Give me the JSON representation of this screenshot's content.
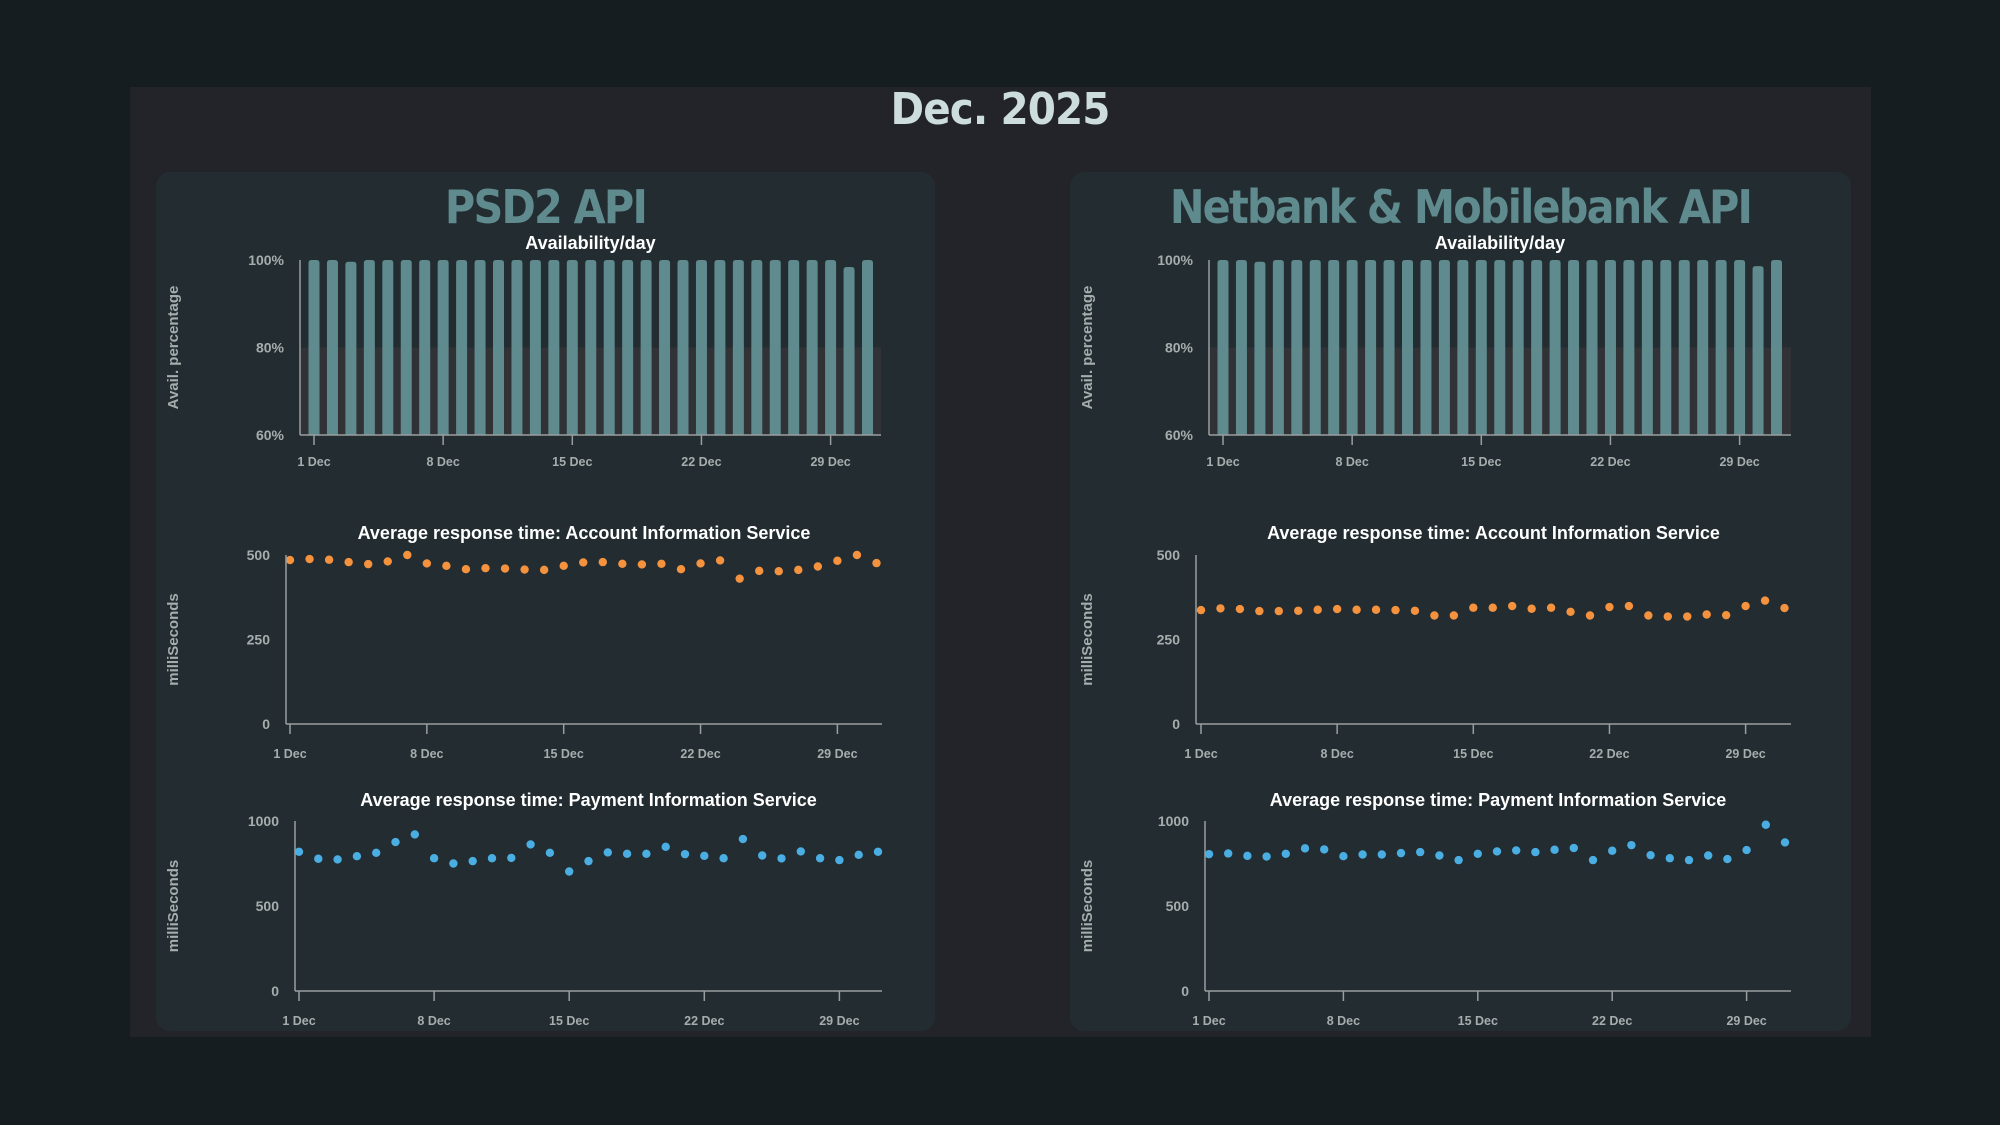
{
  "page": {
    "title": "Dec. 2025"
  },
  "colors": {
    "availability_bar": "#5f8b8e",
    "ais_dot": "#f5923e",
    "pis_dot": "#4aaee3",
    "threshold_band": "#303236"
  },
  "panels": [
    {
      "title": "PSD2 API"
    },
    {
      "title": "Netbank & Mobilebank API"
    }
  ],
  "chart_data": [
    {
      "panel": "PSD2 API",
      "type": "bar",
      "title": "Availability/day",
      "xlabel": "",
      "ylabel": "Avail. percentage",
      "ylim": [
        60,
        100
      ],
      "y_ticks": [
        "60%",
        "80%",
        "100%"
      ],
      "y_tick_values": [
        60,
        80,
        100
      ],
      "threshold_band": [
        60,
        80
      ],
      "x_tick_labels": [
        "1 Dec",
        "8 Dec",
        "15 Dec",
        "22 Dec",
        "29 Dec"
      ],
      "x_tick_days": [
        1,
        8,
        15,
        22,
        29
      ],
      "x": [
        1,
        2,
        3,
        4,
        5,
        6,
        7,
        8,
        9,
        10,
        11,
        12,
        13,
        14,
        15,
        16,
        17,
        18,
        19,
        20,
        21,
        22,
        23,
        24,
        25,
        26,
        27,
        28,
        29,
        30,
        31
      ],
      "values": [
        100,
        100,
        99.6,
        100,
        100,
        100,
        100,
        100,
        100,
        100,
        100,
        100,
        100,
        100,
        100,
        100,
        100,
        100,
        100,
        100,
        100,
        100,
        100,
        100,
        100,
        100,
        100,
        100,
        100,
        98.4,
        100
      ]
    },
    {
      "panel": "PSD2 API",
      "type": "scatter",
      "title": "Average response time: Account Information Service",
      "xlabel": "",
      "ylabel": "milliSeconds",
      "ylim": [
        0,
        500
      ],
      "y_ticks": [
        "0",
        "250",
        "500"
      ],
      "y_tick_values": [
        0,
        250,
        500
      ],
      "x_tick_labels": [
        "1 Dec",
        "8 Dec",
        "15 Dec",
        "22 Dec",
        "29 Dec"
      ],
      "x_tick_days": [
        1,
        8,
        15,
        22,
        29
      ],
      "x": [
        1,
        2,
        3,
        4,
        5,
        6,
        7,
        8,
        9,
        10,
        11,
        12,
        13,
        14,
        15,
        16,
        17,
        18,
        19,
        20,
        21,
        22,
        23,
        24,
        25,
        26,
        27,
        28,
        29,
        30,
        31
      ],
      "values": [
        485,
        488,
        486,
        479,
        473,
        481,
        500,
        475,
        468,
        458,
        461,
        460,
        457,
        456,
        468,
        478,
        479,
        474,
        472,
        474,
        458,
        475,
        484,
        430,
        453,
        452,
        456,
        466,
        483,
        500,
        476
      ]
    },
    {
      "panel": "PSD2 API",
      "type": "scatter",
      "title": "Average response time: Payment Information Service",
      "xlabel": "",
      "ylabel": "milliSeconds",
      "ylim": [
        0,
        1000
      ],
      "y_ticks": [
        "0",
        "500",
        "1000"
      ],
      "y_tick_values": [
        0,
        500,
        1000
      ],
      "x_tick_labels": [
        "1 Dec",
        "8 Dec",
        "15 Dec",
        "22 Dec",
        "29 Dec"
      ],
      "x_tick_days": [
        1,
        8,
        15,
        22,
        29
      ],
      "x": [
        1,
        2,
        3,
        4,
        5,
        6,
        7,
        8,
        9,
        10,
        11,
        12,
        13,
        14,
        15,
        16,
        17,
        18,
        19,
        20,
        21,
        22,
        23,
        24,
        25,
        26,
        27,
        28,
        29,
        30,
        31
      ],
      "values": [
        819,
        778,
        774,
        793,
        813,
        876,
        921,
        781,
        750,
        764,
        781,
        783,
        862,
        813,
        703,
        764,
        815,
        807,
        807,
        848,
        805,
        795,
        781,
        894,
        797,
        780,
        821,
        781,
        770,
        801,
        819
      ]
    },
    {
      "panel": "Netbank & Mobilebank API",
      "type": "bar",
      "title": "Availability/day",
      "xlabel": "",
      "ylabel": "Avail. percentage",
      "ylim": [
        60,
        100
      ],
      "y_ticks": [
        "60%",
        "80%",
        "100%"
      ],
      "y_tick_values": [
        60,
        80,
        100
      ],
      "threshold_band": [
        60,
        80
      ],
      "x_tick_labels": [
        "1 Dec",
        "8 Dec",
        "15 Dec",
        "22 Dec",
        "29 Dec"
      ],
      "x_tick_days": [
        1,
        8,
        15,
        22,
        29
      ],
      "x": [
        1,
        2,
        3,
        4,
        5,
        6,
        7,
        8,
        9,
        10,
        11,
        12,
        13,
        14,
        15,
        16,
        17,
        18,
        19,
        20,
        21,
        22,
        23,
        24,
        25,
        26,
        27,
        28,
        29,
        30,
        31
      ],
      "values": [
        100,
        100,
        99.6,
        100,
        100,
        100,
        100,
        100,
        100,
        100,
        100,
        100,
        100,
        100,
        100,
        100,
        100,
        100,
        100,
        100,
        100,
        100,
        100,
        100,
        100,
        100,
        100,
        100,
        100,
        98.6,
        100
      ]
    },
    {
      "panel": "Netbank & Mobilebank API",
      "type": "scatter",
      "title": "Average response time: Account Information Service",
      "xlabel": "",
      "ylabel": "milliSeconds",
      "ylim": [
        0,
        500
      ],
      "y_ticks": [
        "0",
        "250",
        "500"
      ],
      "y_tick_values": [
        0,
        250,
        500
      ],
      "x_tick_labels": [
        "1 Dec",
        "8 Dec",
        "15 Dec",
        "22 Dec",
        "29 Dec"
      ],
      "x_tick_days": [
        1,
        8,
        15,
        22,
        29
      ],
      "x": [
        1,
        2,
        3,
        4,
        5,
        6,
        7,
        8,
        9,
        10,
        11,
        12,
        13,
        14,
        15,
        16,
        17,
        18,
        19,
        20,
        21,
        22,
        23,
        24,
        25,
        26,
        27,
        28,
        29,
        30,
        31
      ],
      "values": [
        337,
        342,
        340,
        334,
        334,
        335,
        338,
        340,
        338,
        338,
        337,
        335,
        321,
        321,
        344,
        344,
        349,
        341,
        344,
        332,
        321,
        346,
        349,
        321,
        318,
        318,
        324,
        322,
        349,
        365,
        343
      ]
    },
    {
      "panel": "Netbank & Mobilebank API",
      "type": "scatter",
      "title": "Average response time: Payment Information Service",
      "xlabel": "",
      "ylabel": "milliSeconds",
      "ylim": [
        0,
        1000
      ],
      "y_ticks": [
        "0",
        "500",
        "1000"
      ],
      "y_tick_values": [
        0,
        500,
        1000
      ],
      "x_tick_labels": [
        "1 Dec",
        "8 Dec",
        "15 Dec",
        "22 Dec",
        "29 Dec"
      ],
      "x_tick_days": [
        1,
        8,
        15,
        22,
        29
      ],
      "x": [
        1,
        2,
        3,
        4,
        5,
        6,
        7,
        8,
        9,
        10,
        11,
        12,
        13,
        14,
        15,
        16,
        17,
        18,
        19,
        20,
        21,
        22,
        23,
        24,
        25,
        26,
        27,
        28,
        29,
        30,
        31
      ],
      "values": [
        805,
        809,
        795,
        791,
        807,
        839,
        833,
        793,
        803,
        803,
        811,
        817,
        797,
        770,
        807,
        821,
        827,
        817,
        831,
        841,
        770,
        825,
        858,
        799,
        781,
        770,
        797,
        776,
        829,
        978,
        874
      ]
    }
  ]
}
